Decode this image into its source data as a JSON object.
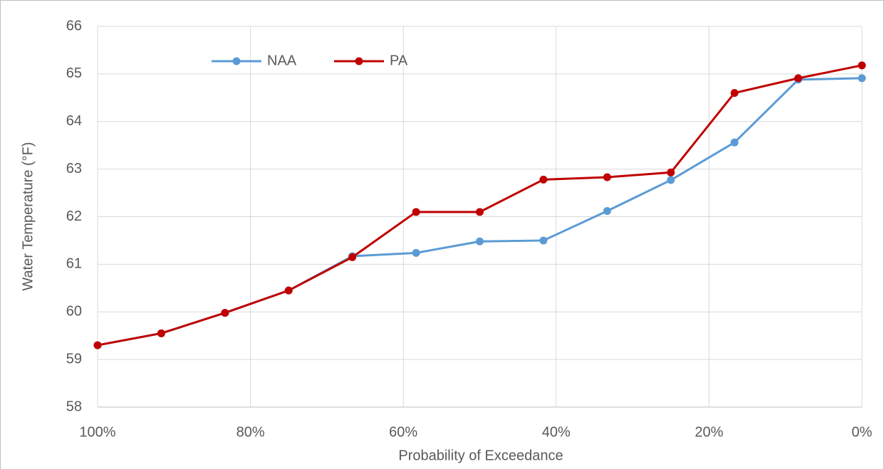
{
  "chart_data": {
    "type": "line",
    "x_label": "Probability of Exceedance",
    "y_label": "Water Temperature (°F)",
    "x": [
      100,
      91.67,
      83.33,
      75,
      66.67,
      58.33,
      50,
      41.67,
      33.33,
      25,
      16.67,
      8.33,
      0
    ],
    "series": [
      {
        "name": "NAA",
        "color": "#5b9bd5",
        "values": [
          59.3,
          59.55,
          59.98,
          60.45,
          61.17,
          61.24,
          61.48,
          61.5,
          62.12,
          62.77,
          63.56,
          64.88,
          64.91
        ]
      },
      {
        "name": "PA",
        "color": "#c00000",
        "values": [
          59.3,
          59.55,
          59.98,
          60.45,
          61.15,
          62.1,
          62.1,
          62.78,
          62.83,
          62.93,
          64.6,
          64.91,
          65.18
        ]
      }
    ],
    "xlim": [
      100,
      0
    ],
    "xticks": [
      {
        "value": 100,
        "label": "100%"
      },
      {
        "value": 80,
        "label": "80%"
      },
      {
        "value": 60,
        "label": "60%"
      },
      {
        "value": 40,
        "label": "40%"
      },
      {
        "value": 20,
        "label": "20%"
      },
      {
        "value": 0,
        "label": "0%"
      }
    ],
    "ylim": [
      58,
      66
    ],
    "yticks": [
      58,
      59,
      60,
      61,
      62,
      63,
      64,
      65,
      66
    ],
    "grid": true,
    "legend": "top-left"
  }
}
